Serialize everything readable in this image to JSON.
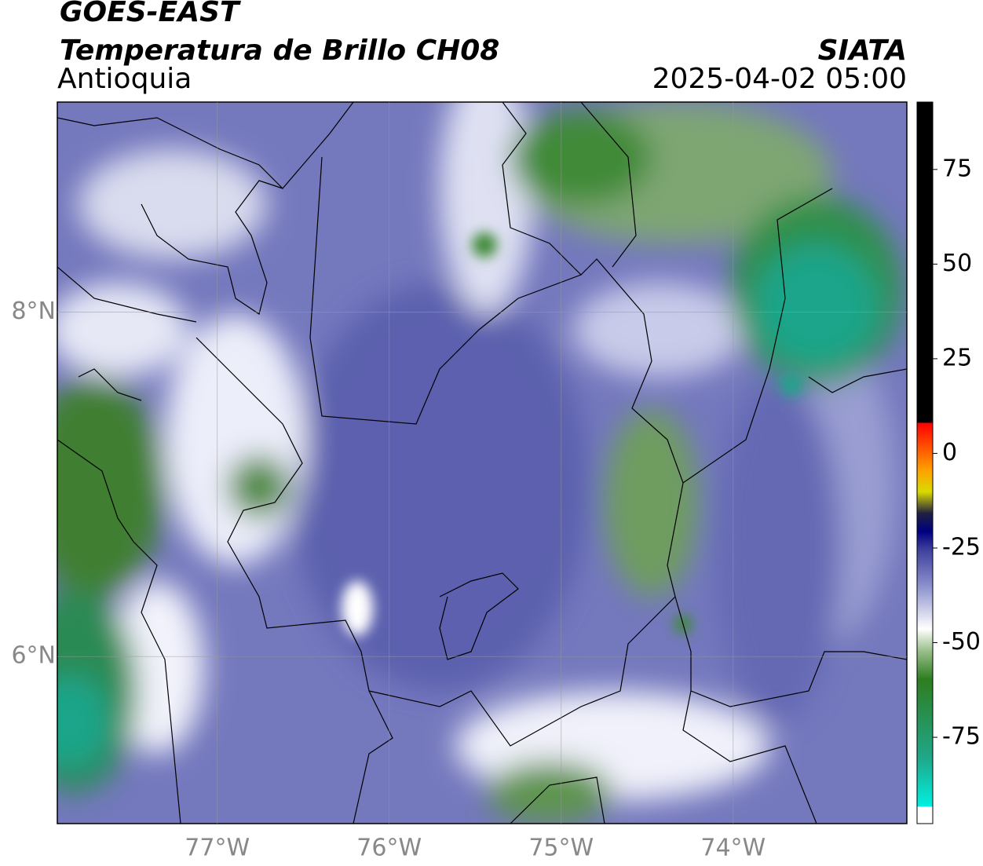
{
  "header": {
    "satellite": "GOES-EAST",
    "product": "Temperatura de Brillo CH08",
    "region": "Antioquia",
    "source": "SIATA",
    "datetime": "2025-04-02 05:00"
  },
  "map": {
    "lon_lim": [
      -77.93,
      -72.99
    ],
    "lat_lim": [
      5.03,
      9.22
    ],
    "lon_ticks": [
      {
        "value": -77,
        "label": "77°W"
      },
      {
        "value": -76,
        "label": "76°W"
      },
      {
        "value": -75,
        "label": "75°W"
      },
      {
        "value": -74,
        "label": "74°W"
      }
    ],
    "lat_ticks": [
      {
        "value": 8,
        "label": "8°N"
      },
      {
        "value": 6,
        "label": "6°N"
      }
    ]
  },
  "colorbar": {
    "lim": [
      -97.8,
      92.8
    ],
    "ticks": [
      75,
      50,
      25,
      0,
      -25,
      -50,
      -75
    ]
  }
}
